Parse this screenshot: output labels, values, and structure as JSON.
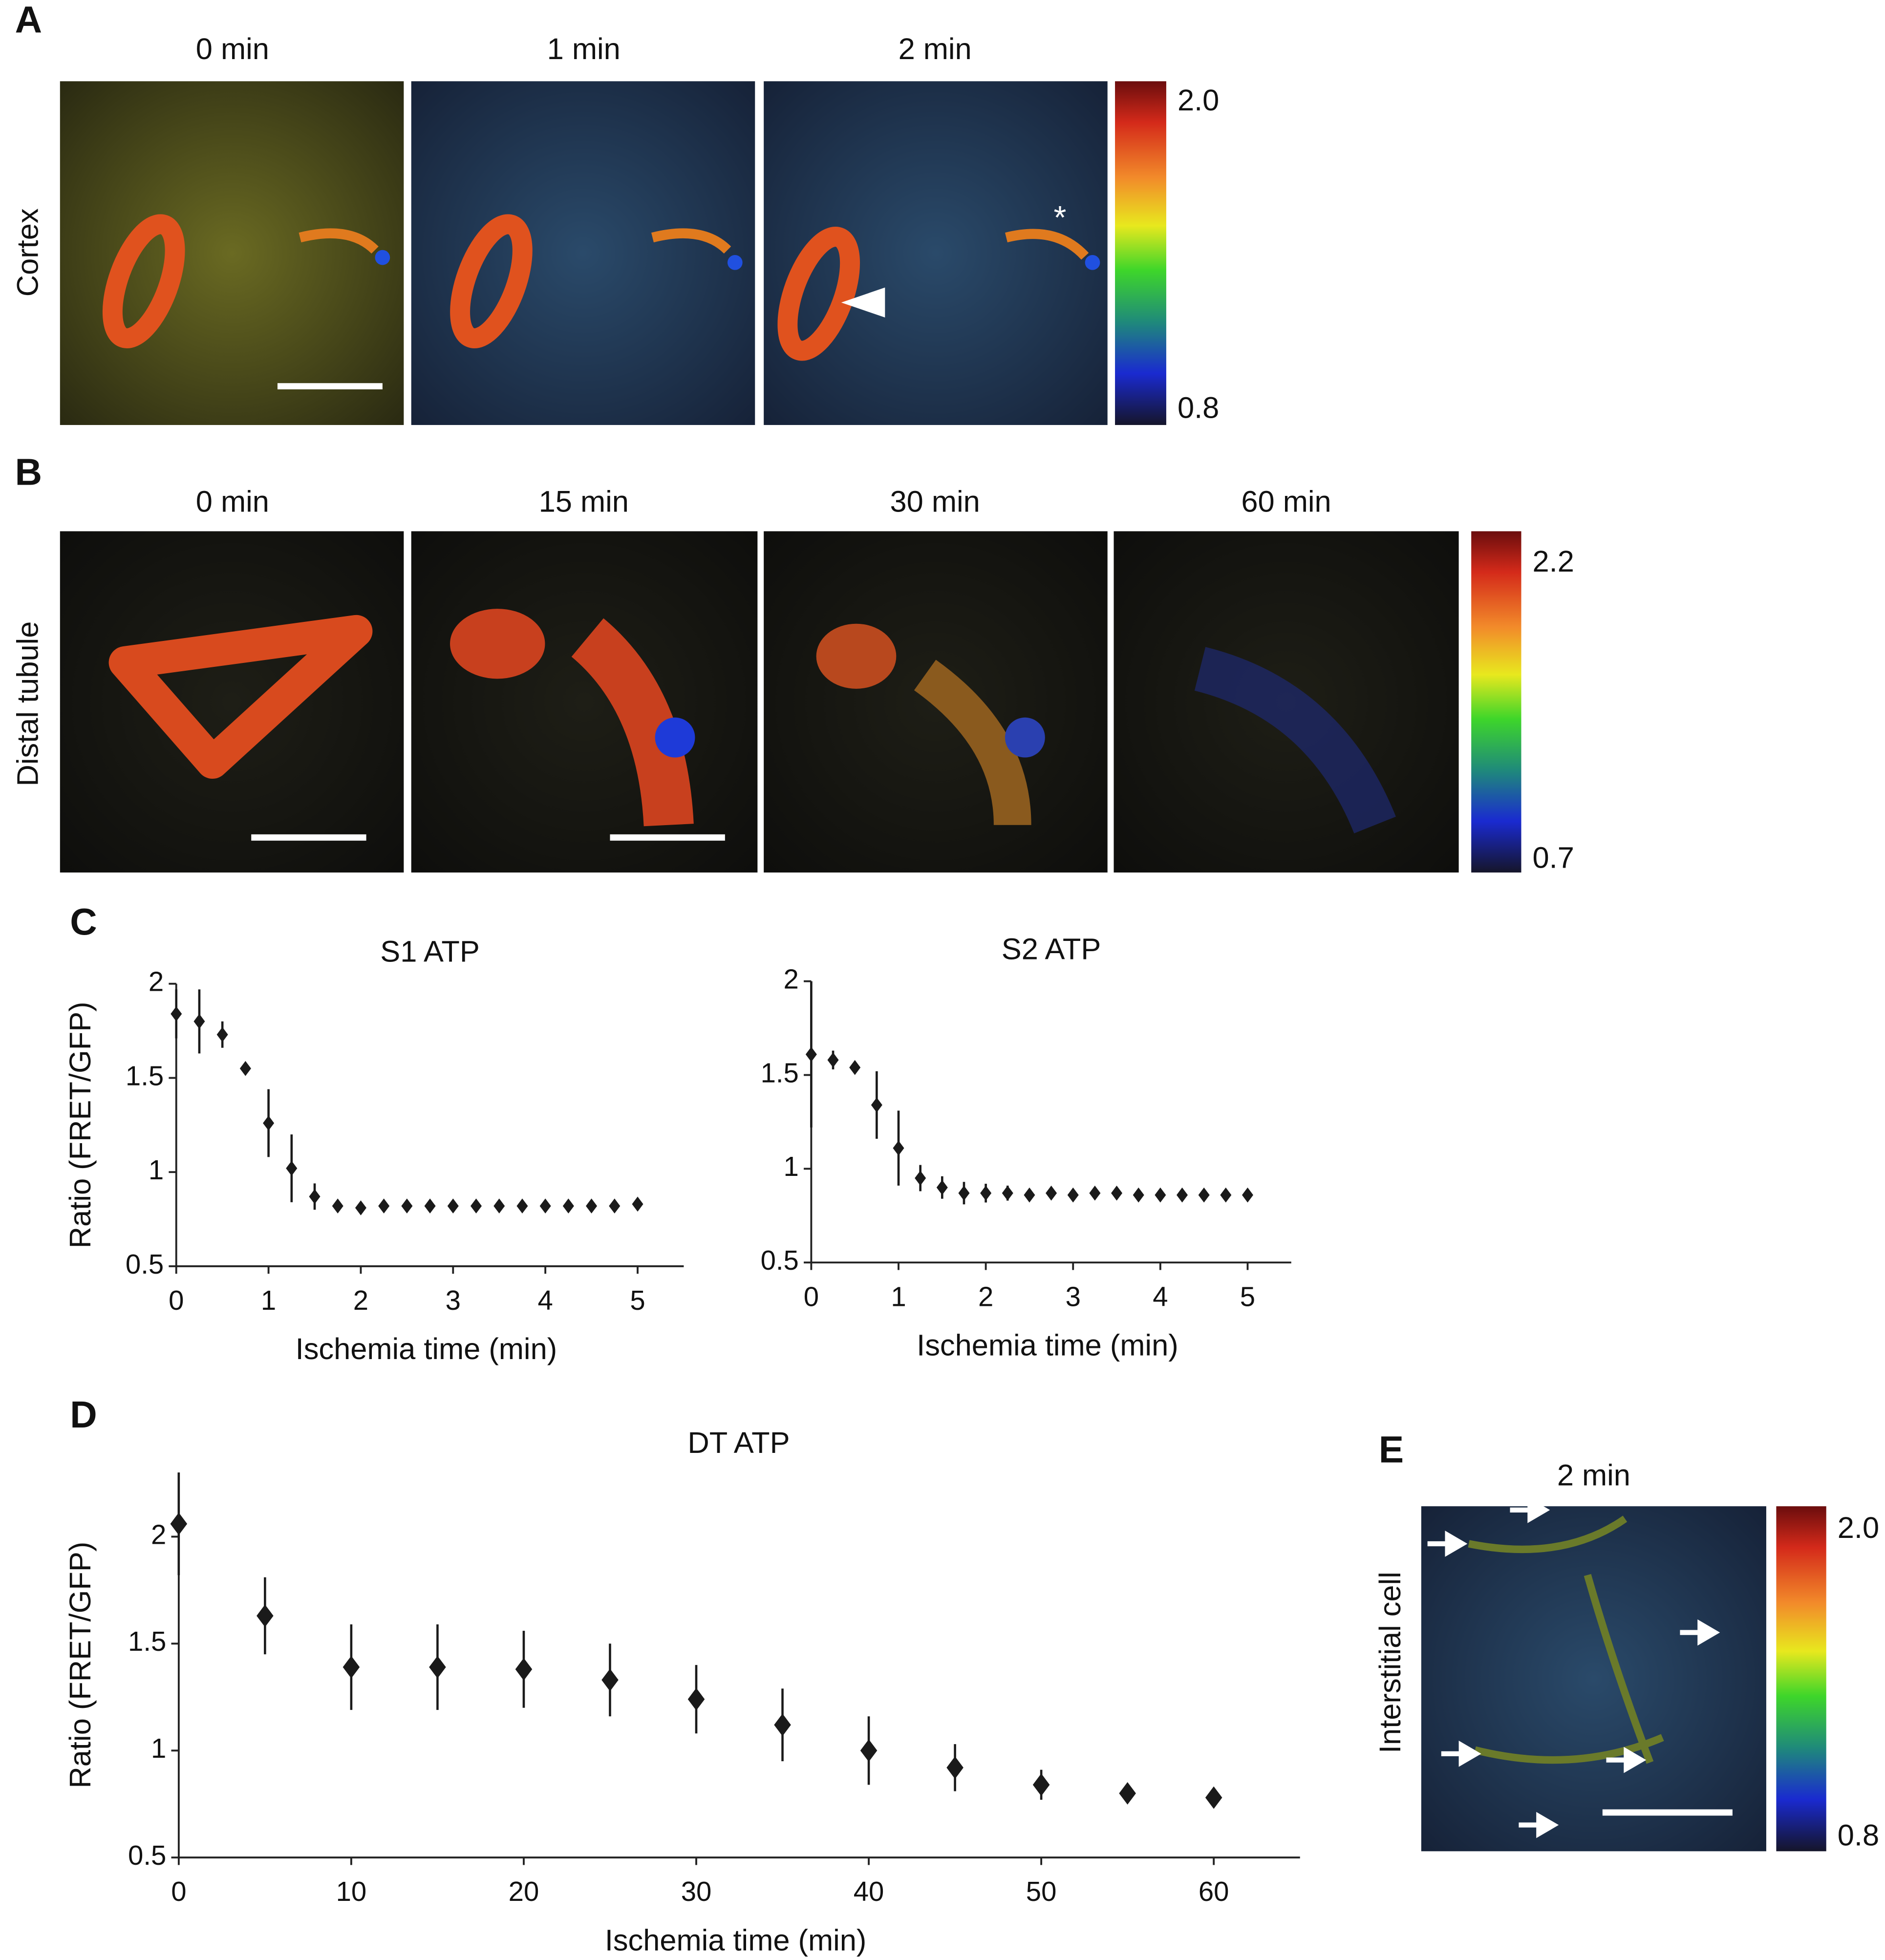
{
  "panels": {
    "A": {
      "letter": "A",
      "row_label": "Cortex",
      "times": [
        "0 min",
        "1 min",
        "2 min"
      ],
      "annotation": "*",
      "colorbar": {
        "max": {
          "value": 2,
          "label": "2.0"
        },
        "min": 0.8
      }
    },
    "B": {
      "letter": "B",
      "row_label": "Distal tubule",
      "times": [
        "0 min",
        "15 min",
        "30 min",
        "60 min"
      ],
      "colorbar": {
        "max": 2.2,
        "min": 0.7
      }
    },
    "C": {
      "letter": "C"
    },
    "D": {
      "letter": "D"
    },
    "E": {
      "letter": "E",
      "row_label": "Interstitial cell",
      "time": "2 min",
      "colorbar": {
        "max": {
          "value": 2,
          "label": "2.0"
        },
        "min": 0.8
      }
    }
  },
  "chart_data": [
    {
      "type": "scatter",
      "title": "S1 ATP",
      "xlabel": "Ischemia time (min)",
      "ylabel": "Ratio (FRET/GFP)",
      "x": [
        0,
        0.25,
        0.5,
        0.75,
        1,
        1.25,
        1.5,
        1.75,
        2,
        2.25,
        2.5,
        2.75,
        3,
        3.25,
        3.5,
        3.75,
        4,
        4.25,
        4.5,
        4.75,
        5
      ],
      "values": [
        1.84,
        1.8,
        1.73,
        1.55,
        1.26,
        1.02,
        0.87,
        0.82,
        0.81,
        0.82,
        0.82,
        0.82,
        0.82,
        0.82,
        0.82,
        0.82,
        0.82,
        0.82,
        0.82,
        0.82,
        0.83
      ],
      "errors": [
        0.13,
        0.17,
        0.07,
        0.03,
        0.18,
        0.18,
        0.07,
        0.03,
        0.03,
        0.03,
        0.03,
        0.03,
        0.03,
        0.03,
        0.03,
        0.03,
        0.03,
        0.03,
        0.03,
        0.03,
        0.02
      ],
      "color": "#1a1a1a",
      "xlim": [
        0,
        5.5
      ],
      "xticks": [
        0,
        1,
        2,
        3,
        4,
        5
      ],
      "ylim": [
        0.5,
        2
      ],
      "yticks": [
        0.5,
        1,
        1.5,
        2
      ],
      "grid": false
    },
    {
      "type": "scatter",
      "title": "S2 ATP",
      "xlabel": "Ischemia time (min)",
      "x": [
        0,
        0.25,
        0.5,
        0.75,
        1,
        1.25,
        1.5,
        1.75,
        2,
        2.25,
        2.5,
        2.75,
        3,
        3.25,
        3.5,
        3.75,
        4,
        4.25,
        4.5,
        4.75,
        5
      ],
      "values": [
        1.61,
        1.58,
        1.54,
        1.34,
        1.11,
        0.95,
        0.9,
        0.87,
        0.87,
        0.87,
        0.86,
        0.87,
        0.86,
        0.87,
        0.87,
        0.86,
        0.86,
        0.86,
        0.86,
        0.86,
        0.86
      ],
      "errors": [
        0.39,
        0.05,
        0.02,
        0.18,
        0.2,
        0.07,
        0.06,
        0.06,
        0.05,
        0.04,
        0.02,
        0.02,
        0.02,
        0.02,
        0.02,
        0.02,
        0.02,
        0.02,
        0.02,
        0.02,
        0.02
      ],
      "color": "#1a1a1a",
      "xlim": [
        0,
        5.5
      ],
      "xticks": [
        0,
        1,
        2,
        3,
        4,
        5
      ],
      "ylim": [
        0.5,
        2
      ],
      "yticks": [
        0.5,
        1,
        1.5,
        2
      ],
      "grid": false
    },
    {
      "type": "scatter",
      "title": "DT ATP",
      "xlabel": "Ischemia time (min)",
      "ylabel": "Ratio (FRET/GFP)",
      "x": [
        0,
        5,
        10,
        15,
        20,
        25,
        30,
        35,
        40,
        45,
        50,
        55,
        60
      ],
      "values": [
        2.06,
        1.63,
        1.39,
        1.39,
        1.38,
        1.33,
        1.24,
        1.12,
        1.0,
        0.92,
        0.84,
        0.8,
        0.78
      ],
      "errors": [
        0.24,
        0.18,
        0.2,
        0.2,
        0.18,
        0.17,
        0.16,
        0.17,
        0.16,
        0.11,
        0.07,
        0.02,
        0.01
      ],
      "color": "#1a1a1a",
      "xlim": [
        0,
        65
      ],
      "xticks": [
        0,
        10,
        20,
        30,
        40,
        50,
        60
      ],
      "ylim": [
        0.5,
        2.3
      ],
      "yticks": [
        0.5,
        1,
        1.5,
        2
      ],
      "grid": false
    }
  ]
}
